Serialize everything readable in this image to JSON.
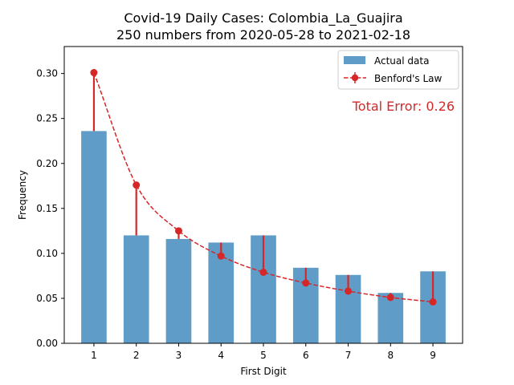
{
  "chart_data": {
    "type": "bar",
    "title": "Covid-19 Daily Cases: Colombia_La_Guajira",
    "subtitle": "250 numbers from 2020-05-28 to 2021-02-18",
    "xlabel": "First Digit",
    "ylabel": "Frequency",
    "categories": [
      "1",
      "2",
      "3",
      "4",
      "5",
      "6",
      "7",
      "8",
      "9"
    ],
    "xlim": [
      0.3,
      9.7
    ],
    "ylim": [
      0,
      0.33
    ],
    "yticks": [
      "0.00",
      "0.05",
      "0.10",
      "0.15",
      "0.20",
      "0.25",
      "0.30"
    ],
    "grid": false,
    "legend_position": "top-right",
    "series": [
      {
        "name": "Actual data",
        "kind": "bar",
        "color": "#5f9dc8",
        "values": [
          0.236,
          0.12,
          0.116,
          0.112,
          0.12,
          0.084,
          0.076,
          0.056,
          0.08
        ]
      },
      {
        "name": "Benford's Law",
        "kind": "line",
        "style": "dashed",
        "color": "#d62728",
        "values": [
          0.301,
          0.176,
          0.125,
          0.097,
          0.079,
          0.067,
          0.058,
          0.051,
          0.046
        ]
      }
    ],
    "annotation": {
      "text": "Total Error: 0.26",
      "color": "#d62728"
    }
  }
}
